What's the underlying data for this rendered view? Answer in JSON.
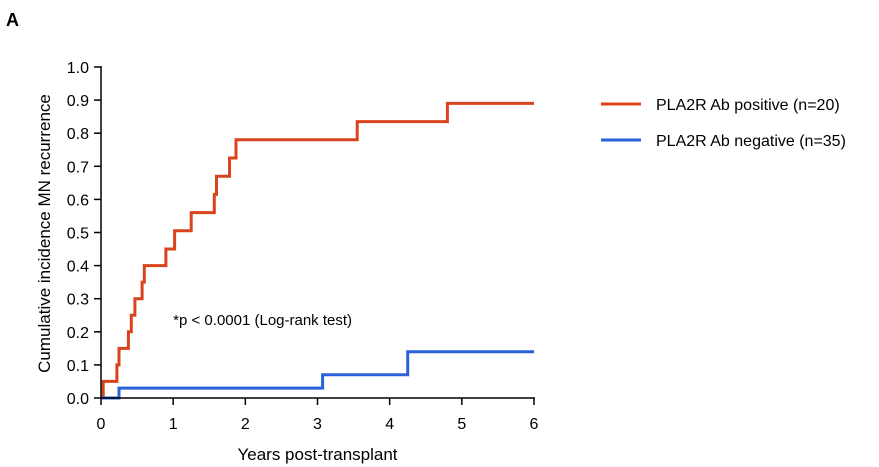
{
  "panel_label": "A",
  "colors": {
    "positive": "#D9441E",
    "negative": "#2A62D9",
    "axis": "#000000"
  },
  "chart_data": {
    "type": "line",
    "step": true,
    "title": "",
    "xlabel": "Years post-transplant",
    "ylabel": "Cumulative incidence MN recurrence",
    "xlim": [
      0,
      6
    ],
    "ylim": [
      0,
      1.0
    ],
    "x_ticks": [
      0,
      1,
      2,
      3,
      4,
      5,
      6
    ],
    "y_ticks": [
      0.0,
      0.1,
      0.2,
      0.3,
      0.4,
      0.5,
      0.6,
      0.7,
      0.8,
      0.9,
      1.0
    ],
    "x_tick_labels": [
      "0",
      "1",
      "2",
      "3",
      "4",
      "5",
      "6"
    ],
    "y_tick_labels": [
      "0.0",
      "0.1",
      "0.2",
      "0.3",
      "0.4",
      "0.5",
      "0.6",
      "0.7",
      "0.8",
      "0.9",
      "1.0"
    ],
    "grid": false,
    "legend_position": "top-right outside",
    "annotation": "*p < 0.0001 (Log-rank test)",
    "annotation_at": [
      1.0,
      0.22
    ],
    "series": [
      {
        "name": "PLA2R Ab positive (n=20)",
        "color": "#D9441E",
        "points": [
          [
            0,
            0
          ],
          [
            0.03,
            0.05
          ],
          [
            0.22,
            0.1
          ],
          [
            0.25,
            0.15
          ],
          [
            0.38,
            0.2
          ],
          [
            0.42,
            0.25
          ],
          [
            0.47,
            0.3
          ],
          [
            0.57,
            0.35
          ],
          [
            0.6,
            0.4
          ],
          [
            0.9,
            0.45
          ],
          [
            1.02,
            0.505
          ],
          [
            1.25,
            0.56
          ],
          [
            1.57,
            0.615
          ],
          [
            1.6,
            0.67
          ],
          [
            1.78,
            0.725
          ],
          [
            1.87,
            0.78
          ],
          [
            3.55,
            0.835
          ],
          [
            4.8,
            0.89
          ],
          [
            6.0,
            0.89
          ]
        ]
      },
      {
        "name": "PLA2R Ab negative (n=35)",
        "color": "#2A62D9",
        "points": [
          [
            0,
            0
          ],
          [
            0.25,
            0.03
          ],
          [
            3.07,
            0.07
          ],
          [
            4.25,
            0.14
          ],
          [
            6.0,
            0.14
          ]
        ]
      }
    ]
  }
}
